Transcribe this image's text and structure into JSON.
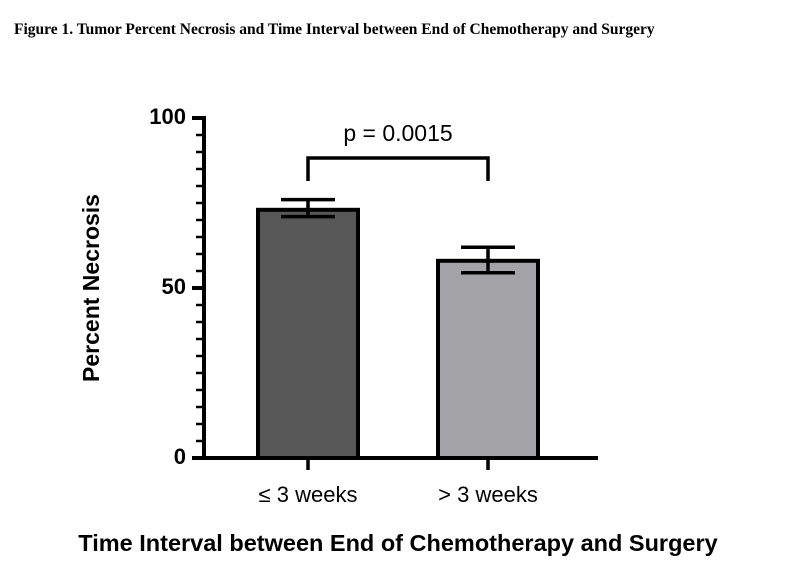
{
  "figure": {
    "caption": "Figure 1. Tumor Percent Necrosis and Time Interval between End of Chemotherapy and Surgery"
  },
  "chart_data": {
    "type": "bar",
    "title": "",
    "xlabel": "Time Interval between End of Chemotherapy and Surgery",
    "ylabel": "Percent Necrosis",
    "ylim": [
      0,
      100
    ],
    "yticks": [
      "0",
      "50",
      "100"
    ],
    "categories": [
      "≤ 3 weeks",
      "> 3 weeks"
    ],
    "values": [
      73,
      58
    ],
    "error_bars": [
      {
        "lower": 71,
        "upper": 76
      },
      {
        "lower": 54.5,
        "upper": 62
      }
    ],
    "bar_colors": [
      "#575757",
      "#a3a3a8"
    ],
    "annotation": {
      "text": "p = 0.0015",
      "type": "significance-bracket",
      "between": [
        "≤ 3 weeks",
        "> 3 weeks"
      ]
    },
    "grid": false,
    "legend": "none"
  }
}
